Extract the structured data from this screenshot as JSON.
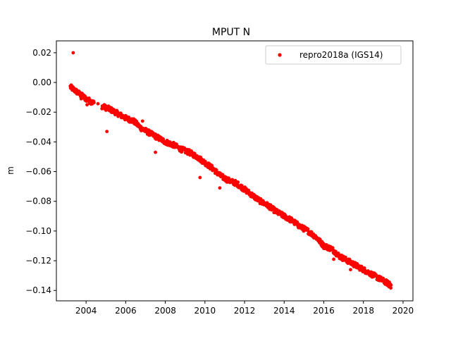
{
  "chart_data": {
    "type": "scatter",
    "title": "MPUT N",
    "xlabel": "",
    "ylabel": "m",
    "xlim": [
      2002.5,
      2020.5
    ],
    "ylim": [
      -0.147,
      0.028
    ],
    "xticks": [
      2004,
      2006,
      2008,
      2010,
      2012,
      2014,
      2016,
      2018,
      2020
    ],
    "yticks": [
      0.02,
      0.0,
      -0.02,
      -0.04,
      -0.06,
      -0.08,
      -0.1,
      -0.12,
      -0.14
    ],
    "ytick_labels": [
      "0.02",
      "0.00",
      "−0.02",
      "−0.04",
      "−0.06",
      "−0.08",
      "−0.10",
      "−0.12",
      "−0.14"
    ],
    "legend_position": "top-right",
    "grid": false,
    "series": [
      {
        "name": "repro2018a (IGS14)",
        "color": "#ff0000",
        "marker": "circle",
        "trend": [
          [
            2003.2,
            -0.003
          ],
          [
            2003.6,
            -0.007
          ],
          [
            2004.0,
            -0.011
          ],
          [
            2004.4,
            -0.014
          ],
          [
            2004.8,
            -0.016
          ],
          [
            2005.2,
            -0.018
          ],
          [
            2005.6,
            -0.021
          ],
          [
            2006.0,
            -0.024
          ],
          [
            2006.4,
            -0.026
          ],
          [
            2006.8,
            -0.031
          ],
          [
            2007.2,
            -0.034
          ],
          [
            2007.6,
            -0.037
          ],
          [
            2008.0,
            -0.04
          ],
          [
            2008.4,
            -0.042
          ],
          [
            2008.8,
            -0.045
          ],
          [
            2009.2,
            -0.047
          ],
          [
            2009.6,
            -0.05
          ],
          [
            2010.0,
            -0.054
          ],
          [
            2010.4,
            -0.058
          ],
          [
            2010.8,
            -0.063
          ],
          [
            2011.2,
            -0.066
          ],
          [
            2011.6,
            -0.068
          ],
          [
            2012.0,
            -0.072
          ],
          [
            2012.4,
            -0.076
          ],
          [
            2012.8,
            -0.08
          ],
          [
            2013.2,
            -0.083
          ],
          [
            2013.6,
            -0.087
          ],
          [
            2014.0,
            -0.09
          ],
          [
            2014.4,
            -0.093
          ],
          [
            2014.8,
            -0.097
          ],
          [
            2015.2,
            -0.1
          ],
          [
            2015.6,
            -0.104
          ],
          [
            2016.0,
            -0.11
          ],
          [
            2016.4,
            -0.112
          ],
          [
            2016.8,
            -0.117
          ],
          [
            2017.2,
            -0.12
          ],
          [
            2017.6,
            -0.123
          ],
          [
            2018.0,
            -0.126
          ],
          [
            2018.4,
            -0.129
          ],
          [
            2018.8,
            -0.132
          ],
          [
            2019.2,
            -0.135
          ],
          [
            2019.4,
            -0.137
          ]
        ],
        "outliers": [
          [
            2003.35,
            0.02
          ],
          [
            2003.95,
            -0.012
          ],
          [
            2003.75,
            -0.011
          ],
          [
            2004.05,
            -0.015
          ],
          [
            2005.05,
            -0.033
          ],
          [
            2006.85,
            -0.026
          ],
          [
            2007.5,
            -0.047
          ],
          [
            2009.75,
            -0.064
          ],
          [
            2010.75,
            -0.071
          ],
          [
            2016.5,
            -0.119
          ],
          [
            2017.35,
            -0.126
          ],
          [
            2018.0,
            -0.127
          ]
        ]
      }
    ]
  }
}
